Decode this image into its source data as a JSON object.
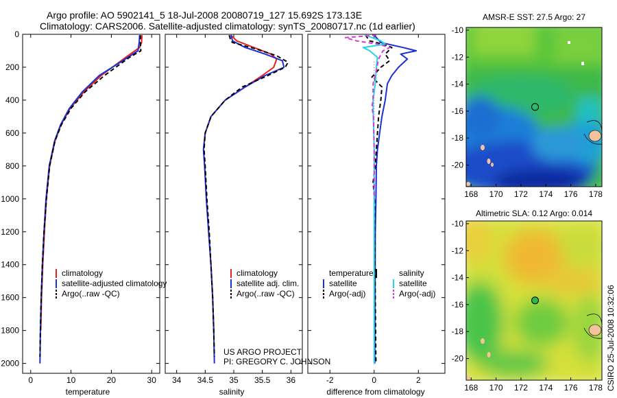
{
  "header": {
    "line1": "Argo profile: AO 5902141_5 18-Jul-2008 20080719_127 15.692S 173.13E",
    "line2": "Climatology: CARS2006. Satellite-adjusted climatology: synTS_20080717.nc (1d earlier)"
  },
  "credit": {
    "project": "US ARGO PROJECT",
    "pi": "PI: GREGORY C. JOHNSON",
    "stamp": "CSIRO 25-Jul-2008 10:32:06"
  },
  "chart_data": [
    {
      "type": "line",
      "id": "temperature",
      "xlabel": "temperature",
      "ylabel": "",
      "xlim": [
        -2,
        32
      ],
      "ylim": [
        2060,
        0
      ],
      "xticks": [
        0,
        10,
        20,
        30
      ],
      "yticks": [
        0,
        200,
        400,
        600,
        800,
        1000,
        1200,
        1400,
        1600,
        1800,
        2000
      ],
      "legend": [
        "climatology",
        "satellite-adjusted climatology",
        "Argo(..raw -QC)"
      ],
      "series": [
        {
          "name": "climatology",
          "color": "#e8201a",
          "dash": "",
          "depth": [
            5,
            50,
            80,
            150,
            250,
            350,
            450,
            550,
            650,
            800,
            1000,
            1200,
            1400,
            1600,
            1800
          ],
          "values": [
            27.6,
            27.5,
            27.0,
            23.0,
            17.5,
            13.2,
            9.8,
            7.5,
            6.0,
            4.7,
            3.9,
            3.4,
            3.0,
            2.7,
            2.5
          ]
        },
        {
          "name": "satellite-adjusted climatology",
          "color": "#1a2fd6",
          "dash": "",
          "depth": [
            5,
            50,
            100,
            150,
            250,
            350,
            450,
            550,
            650,
            800,
            1000,
            1200,
            1400,
            1600,
            1800,
            2000
          ],
          "values": [
            27.0,
            26.9,
            26.6,
            23.5,
            17.0,
            12.8,
            9.6,
            7.4,
            5.9,
            4.6,
            3.8,
            3.3,
            2.9,
            2.6,
            2.4,
            2.3
          ]
        },
        {
          "name": "Argo(..raw -QC)",
          "color": "#000000",
          "dash": "6,4",
          "depth": [
            5,
            60,
            100,
            140,
            250,
            350,
            450,
            550,
            650,
            800,
            1000,
            1200,
            1400,
            1600,
            1800,
            1960
          ],
          "values": [
            27.2,
            27.2,
            27.3,
            24.5,
            18.3,
            13.5,
            10.0,
            7.6,
            6.0,
            4.7,
            3.9,
            3.3,
            2.9,
            2.6,
            2.4,
            2.3
          ]
        }
      ]
    },
    {
      "type": "line",
      "id": "salinity",
      "xlabel": "salinity",
      "ylabel": "",
      "xlim": [
        33.8,
        36.2
      ],
      "ylim": [
        2060,
        0
      ],
      "xticks": [
        34,
        34.5,
        35,
        35.5,
        36
      ],
      "xtick_labels": [
        "34",
        "34.5",
        "35",
        "35.5",
        "36"
      ],
      "legend": [
        "climatology",
        "satellite adj. clim.",
        "Argo(..raw -QC)"
      ],
      "series": [
        {
          "name": "climatology",
          "color": "#e8201a",
          "dash": "",
          "depth": [
            5,
            40,
            80,
            120,
            150,
            200,
            250,
            320,
            400,
            500,
            600,
            700,
            800,
            1000,
            1200,
            1400,
            1600,
            1800
          ],
          "values": [
            34.95,
            35.05,
            35.35,
            35.65,
            35.75,
            35.7,
            35.5,
            35.2,
            34.85,
            34.6,
            34.5,
            34.47,
            34.49,
            34.52,
            34.56,
            34.6,
            34.63,
            34.65
          ]
        },
        {
          "name": "satellite adj. clim.",
          "color": "#1a2fd6",
          "dash": "",
          "depth": [
            5,
            40,
            80,
            120,
            160,
            200,
            250,
            320,
            400,
            500,
            600,
            700,
            800,
            1000,
            1200,
            1400,
            1600,
            1800,
            2000
          ],
          "values": [
            34.95,
            34.98,
            35.2,
            35.55,
            35.85,
            35.88,
            35.55,
            35.2,
            34.85,
            34.6,
            34.5,
            34.47,
            34.49,
            34.52,
            34.56,
            34.6,
            34.63,
            34.65,
            34.66
          ]
        },
        {
          "name": "Argo(..raw -QC)",
          "color": "#000000",
          "dash": "6,4",
          "depth": [
            5,
            40,
            50,
            90,
            130,
            170,
            200,
            250,
            320,
            400,
            500,
            600,
            700,
            800,
            1000,
            1200,
            1400,
            1600,
            1800,
            1960
          ],
          "values": [
            34.92,
            34.95,
            34.98,
            35.4,
            35.75,
            35.95,
            35.9,
            35.6,
            35.15,
            34.85,
            34.6,
            34.5,
            34.48,
            34.5,
            34.53,
            34.57,
            34.6,
            34.63,
            34.65,
            34.66
          ]
        }
      ]
    },
    {
      "type": "line",
      "id": "difference",
      "xlabel": "difference from climatology",
      "ylabel": "",
      "xlim": [
        -3,
        3.2
      ],
      "ylim": [
        2060,
        0
      ],
      "xticks": [
        -2,
        0,
        2
      ],
      "legend_left_title": "temperature",
      "legend_right_title": "salinity",
      "legend": [
        "satellite",
        "Argo(-adj)",
        "satellite",
        "Argo(-adj)"
      ],
      "series": [
        {
          "name": "temperature satellite",
          "color": "#1a2fd6",
          "dash": "",
          "depth": [
            5,
            50,
            80,
            100,
            120,
            150,
            200,
            250,
            300,
            400,
            500,
            600,
            700,
            800,
            1000,
            1200,
            1600,
            2000
          ],
          "values": [
            0.0,
            0.3,
            1.3,
            1.9,
            1.2,
            1.5,
            1.1,
            0.8,
            0.6,
            0.5,
            0.35,
            0.25,
            0.15,
            0.1,
            0.08,
            0.05,
            0.04,
            0.03
          ]
        },
        {
          "name": "temperature Argo(-adj)",
          "color": "#000000",
          "dash": "6,4",
          "depth": [
            5,
            40,
            60,
            80,
            120,
            160,
            200,
            260,
            320,
            400,
            500,
            600,
            700,
            800,
            900,
            1000,
            1200,
            1600,
            2000
          ],
          "values": [
            -0.4,
            -0.2,
            0.4,
            0.8,
            0.5,
            0.7,
            0.3,
            -0.1,
            0.35,
            0.3,
            0.2,
            0.15,
            0.1,
            0.05,
            -0.05,
            0.02,
            0.03,
            0.05,
            0.08
          ]
        },
        {
          "name": "salinity satellite",
          "color": "#22d6e6",
          "dash": "",
          "depth": [
            5,
            40,
            60,
            80,
            100,
            140,
            200,
            300,
            400,
            500,
            700,
            1000,
            1400,
            2000
          ],
          "values": [
            -0.4,
            0.3,
            0.5,
            -0.5,
            -0.2,
            0.15,
            0.1,
            0.05,
            -0.05,
            -0.04,
            0.0,
            0.0,
            0.0,
            0.0
          ]
        },
        {
          "name": "salinity Argo(-adj)",
          "color": "#d63ad6",
          "dash": "6,4",
          "depth": [
            5,
            20,
            40,
            60,
            80,
            100,
            150,
            220,
            300,
            400,
            440,
            500,
            700,
            1000
          ],
          "values": [
            0.1,
            -1.3,
            -0.8,
            0.2,
            0.7,
            0.4,
            0.2,
            0.1,
            -0.05,
            -0.05,
            -0.1,
            -0.03,
            0.0,
            0.0
          ]
        }
      ]
    },
    {
      "type": "heatmap",
      "id": "sst-map",
      "title": "AMSR-E SST: 27.5 Argo: 27",
      "xlim": [
        167.6,
        178.5
      ],
      "ylim": [
        -21.6,
        -9.8
      ],
      "xticks": [
        168,
        170,
        172,
        174,
        176,
        178
      ],
      "yticks": [
        -10,
        -12,
        -14,
        -16,
        -18,
        -20
      ],
      "marker": {
        "lon": 173.13,
        "lat": -15.692
      }
    },
    {
      "type": "heatmap",
      "id": "sla-map",
      "title": "Altimetric SLA: 0.12 Argo: 0.014",
      "xlim": [
        167.6,
        178.5
      ],
      "ylim": [
        -21.6,
        -9.8
      ],
      "xticks": [
        168,
        170,
        172,
        174,
        176,
        178
      ],
      "yticks": [
        -10,
        -12,
        -14,
        -16,
        -18,
        -20
      ],
      "marker": {
        "lon": 173.13,
        "lat": -15.692
      }
    }
  ]
}
